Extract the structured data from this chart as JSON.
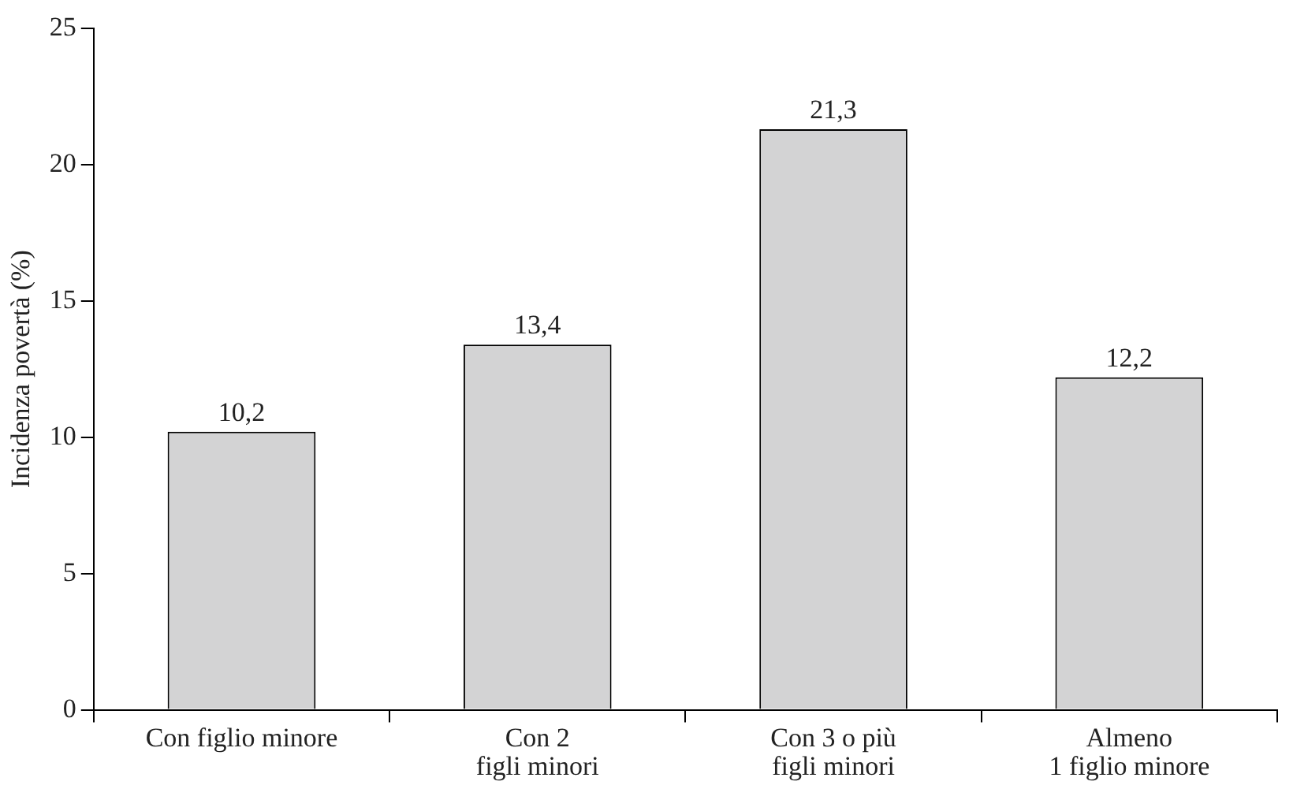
{
  "chart_data": {
    "type": "bar",
    "ylabel": "Incidenza povertà (%)",
    "categories": [
      "Con figlio minore",
      "Con 2\nfigli minori",
      "Con 3 o più\nfigli minori",
      "Almeno\n1 figlio minore"
    ],
    "values": [
      10.2,
      13.4,
      21.3,
      12.2
    ],
    "color": "#d3d3d4",
    "value_labels": [
      "10,2",
      "13,4",
      "21,3",
      "12,2"
    ],
    "ylim": [
      0,
      25
    ],
    "yticks": [
      0,
      5,
      10,
      15,
      20,
      25
    ],
    "grid": false,
    "legend": false
  }
}
